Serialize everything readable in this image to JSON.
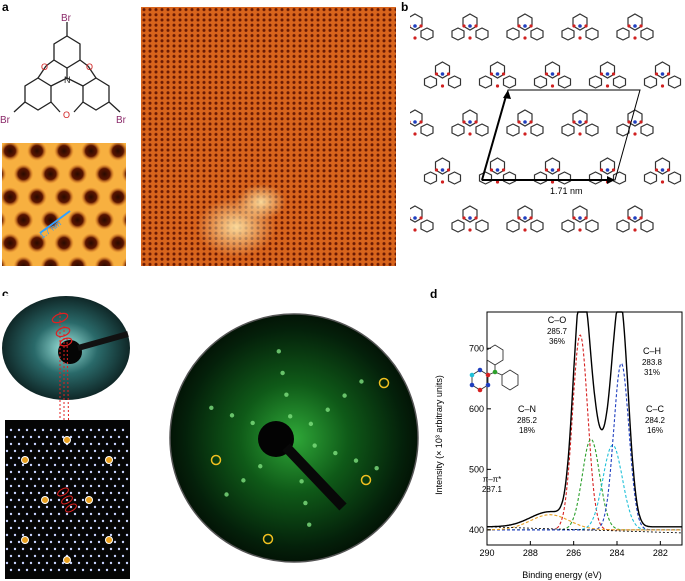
{
  "panels": {
    "a": {
      "letter": "a",
      "molecule_labels": [
        "Br",
        "Br",
        "Br",
        "O",
        "O",
        "O",
        "N"
      ],
      "scale_label": "1.7 nm"
    },
    "b": {
      "letter": "b",
      "cell_label": "1.71 nm"
    },
    "c": {
      "letter": "c"
    },
    "d": {
      "letter": "d",
      "peaks": {
        "co": {
          "name": "C–O",
          "energy": "285.7",
          "percent": "36%"
        },
        "ch": {
          "name": "C–H",
          "energy": "283.8",
          "percent": "31%"
        },
        "cn": {
          "name": "C–N",
          "energy": "285.2",
          "percent": "18%"
        },
        "cc": {
          "name": "C–C",
          "energy": "284.2",
          "percent": "16%"
        },
        "pi": {
          "name": "π–π*",
          "energy": "287.1"
        }
      }
    }
  },
  "chart_data": {
    "type": "line",
    "xlabel": "Binding energy (eV)",
    "ylabel": "Intensity (× 10³ arbitrary units)",
    "xlim": [
      290,
      281
    ],
    "ylim": [
      375,
      760
    ],
    "x_ticks": [
      "290",
      "288",
      "286",
      "284",
      "282"
    ],
    "y_ticks": [
      "400",
      "500",
      "600",
      "700"
    ],
    "components": [
      {
        "name": "C–O",
        "center": 285.7,
        "height": 322,
        "width": 0.35,
        "color": "#d62020"
      },
      {
        "name": "C–N",
        "center": 285.2,
        "height": 150,
        "width": 0.4,
        "color": "#2ca02c"
      },
      {
        "name": "C–C",
        "center": 284.2,
        "height": 140,
        "width": 0.45,
        "color": "#20c0d8"
      },
      {
        "name": "C–H",
        "center": 283.8,
        "height": 275,
        "width": 0.35,
        "color": "#1f3fbf"
      },
      {
        "name": "π–π*",
        "center": 287.1,
        "height": 25,
        "width": 0.9,
        "color": "#e8a020"
      }
    ],
    "baseline": 405
  }
}
